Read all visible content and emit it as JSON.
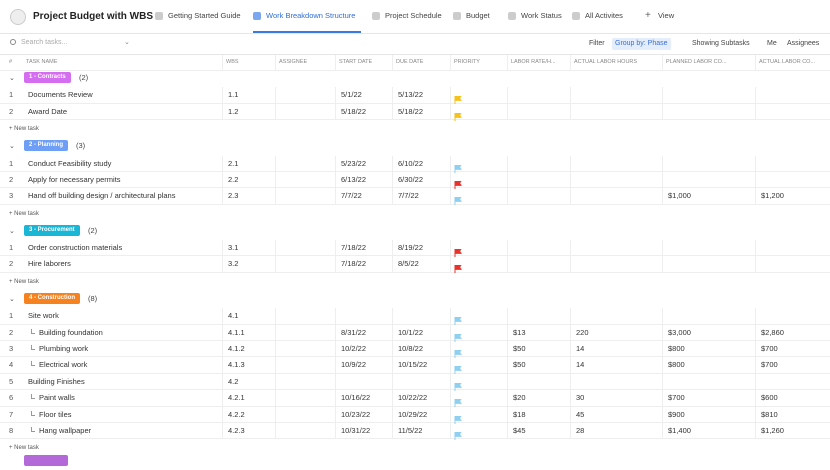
{
  "header": {
    "title": "Project Budget with WBS",
    "tabs": [
      "Getting Started Guide",
      "Work Breakdown Structure",
      "Project Schedule",
      "Budget",
      "Work Status",
      "All Activites",
      "View"
    ],
    "active_tab": 1
  },
  "toolbar": {
    "search_placeholder": "Search tasks...",
    "buttons": [
      "Filter",
      "Group by: Phase",
      "Showing Subtasks",
      "Me",
      "Assignees"
    ],
    "active_button": 1
  },
  "table": {
    "columns": [
      "#",
      "TASK NAME",
      "WBS",
      "ASSIGNEE",
      "START DATE",
      "DUE DATE",
      "PRIORITY",
      "LABOR RATE/H...",
      "ACTUAL LABOR HOURS",
      "PLANNED LABOR CO...",
      "ACTUAL LABOR CO..."
    ],
    "new_task_label": "+ New task",
    "groups": [
      {
        "name": "1 - Contracts",
        "count": "(2)",
        "color": "#d56df0",
        "rows": [
          {
            "num": 1,
            "name": "Documents Review",
            "wbs": "1.1",
            "start": "5/1/22",
            "due": "5/13/22",
            "flag": "#f6c21a"
          },
          {
            "num": 2,
            "name": "Award Date",
            "wbs": "1.2",
            "start": "5/18/22",
            "due": "5/18/22",
            "flag": "#f6c21a"
          }
        ]
      },
      {
        "name": "2 - Planning",
        "count": "(3)",
        "color": "#6f9ef6",
        "rows": [
          {
            "num": 1,
            "name": "Conduct Feasibility study",
            "wbs": "2.1",
            "start": "5/23/22",
            "due": "6/10/22",
            "flag": "#8fd0f0"
          },
          {
            "num": 2,
            "name": "Apply for necessary permits",
            "wbs": "2.2",
            "start": "6/13/22",
            "due": "6/30/22",
            "flag": "#e8322b"
          },
          {
            "num": 3,
            "name": "Hand off building design / architectural plans",
            "wbs": "2.3",
            "start": "7/7/22",
            "due": "7/7/22",
            "flag": "#8fd0f0",
            "planned": "$1,000",
            "actual": "$1,200"
          }
        ]
      },
      {
        "name": "3 - Procurement",
        "count": "(2)",
        "color": "#1ab6d6",
        "rows": [
          {
            "num": 1,
            "name": "Order construction materials",
            "wbs": "3.1",
            "start": "7/18/22",
            "due": "8/19/22",
            "flag": "#e8322b"
          },
          {
            "num": 2,
            "name": "Hire laborers",
            "wbs": "3.2",
            "start": "7/18/22",
            "due": "8/5/22",
            "flag": "#e8322b"
          }
        ]
      },
      {
        "name": "4 - Construction",
        "count": "(8)",
        "color": "#f5821f",
        "rows": [
          {
            "num": 1,
            "name": "Site work",
            "wbs": "4.1",
            "flag": "#8fd0f0"
          },
          {
            "num": 2,
            "name": "Building foundation",
            "sub": true,
            "wbs": "4.1.1",
            "start": "8/31/22",
            "due": "10/1/22",
            "flag": "#8fd0f0",
            "rate": "$13",
            "hours": 220,
            "planned": "$3,000",
            "actual": "$2,860"
          },
          {
            "num": 3,
            "name": "Plumbing work",
            "sub": true,
            "wbs": "4.1.2",
            "start": "10/2/22",
            "due": "10/8/22",
            "flag": "#8fd0f0",
            "rate": "$50",
            "hours": 14,
            "planned": "$800",
            "actual": "$700"
          },
          {
            "num": 4,
            "name": "Electrical work",
            "sub": true,
            "wbs": "4.1.3",
            "start": "10/9/22",
            "due": "10/15/22",
            "flag": "#8fd0f0",
            "rate": "$50",
            "hours": 14,
            "planned": "$800",
            "actual": "$700"
          },
          {
            "num": 5,
            "name": "Building Finishes",
            "wbs": "4.2",
            "flag": "#8fd0f0"
          },
          {
            "num": 6,
            "name": "Paint walls",
            "sub": true,
            "wbs": "4.2.1",
            "start": "10/16/22",
            "due": "10/22/22",
            "flag": "#8fd0f0",
            "rate": "$20",
            "hours": 30,
            "planned": "$700",
            "actual": "$600"
          },
          {
            "num": 7,
            "name": "Floor tiles",
            "sub": true,
            "wbs": "4.2.2",
            "start": "10/23/22",
            "due": "10/29/22",
            "flag": "#8fd0f0",
            "rate": "$18",
            "hours": 45,
            "planned": "$900",
            "actual": "$810"
          },
          {
            "num": 8,
            "name": "Hang wallpaper",
            "sub": true,
            "wbs": "4.2.3",
            "start": "10/31/22",
            "due": "11/5/22",
            "flag": "#8fd0f0",
            "rate": "$45",
            "hours": 28,
            "planned": "$1,400",
            "actual": "$1,260"
          }
        ]
      }
    ]
  }
}
